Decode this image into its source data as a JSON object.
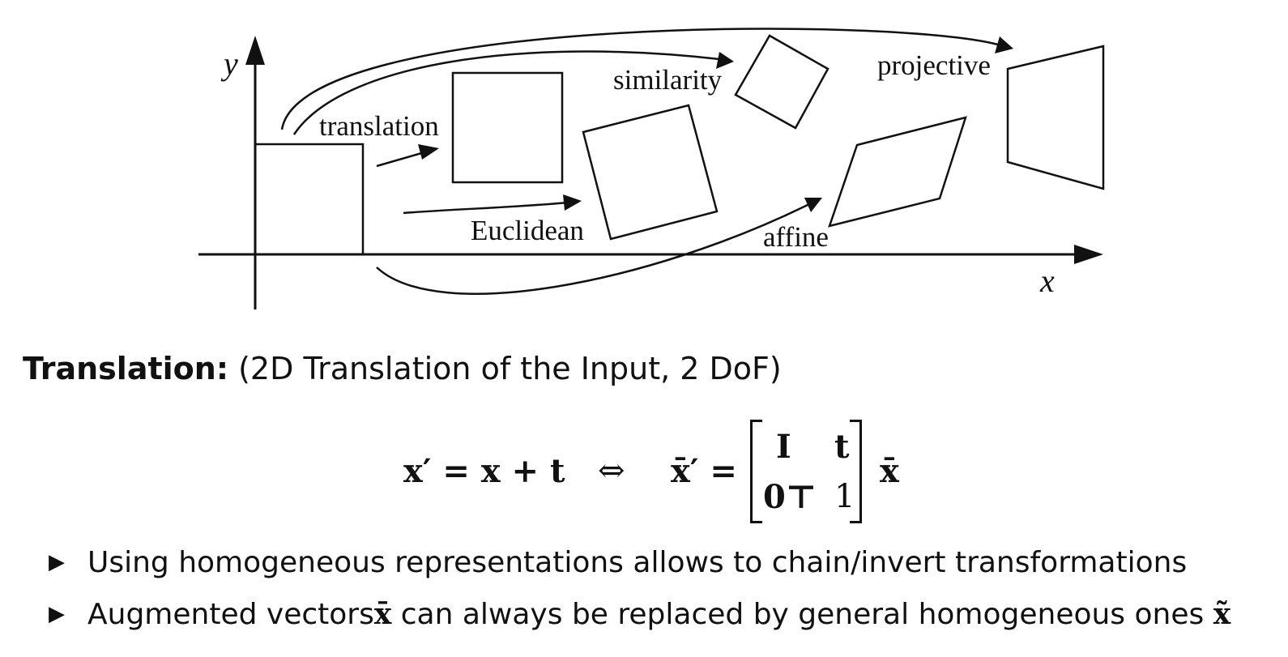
{
  "diagram": {
    "axis_labels": {
      "x": "x",
      "y": "y"
    },
    "transform_labels": {
      "translation": "translation",
      "euclidean": "Euclidean",
      "similarity": "similarity",
      "affine": "affine",
      "projective": "projective"
    }
  },
  "section": {
    "title": "Translation:",
    "subtitle": "(2D Translation of the Input, 2 DoF)"
  },
  "equation": {
    "lhs": "x′ = x + t",
    "iff": "⇔",
    "rhs_prefix": "x̄′ =",
    "matrix": {
      "r1c1": "I",
      "r1c2": "t",
      "r2c1": "0⊤",
      "r2c2": "1"
    },
    "rhs_suffix": "x̄"
  },
  "bullets": [
    {
      "text": "Using homogeneous representations allows to chain/invert transformations"
    },
    {
      "text_before": "Augmented vectors ",
      "sym1": "x̄",
      "text_middle": " can always be replaced by general homogeneous ones ",
      "sym2": "x̃"
    }
  ]
}
